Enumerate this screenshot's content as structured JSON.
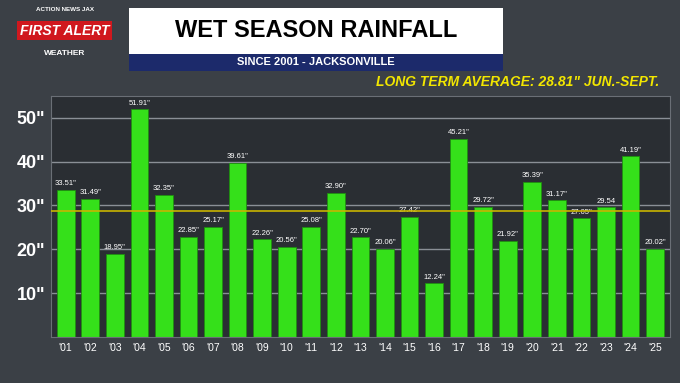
{
  "chart_data": {
    "type": "bar",
    "title": "WET SEASON RAINFALL",
    "subtitle": "SINCE 2001 - JACKSONVILLE",
    "annotation": "LONG TERM AVERAGE: 28.81\" JUN.-SEPT.",
    "logo": [
      "ACTION NEWS JAX",
      "FIRST ALERT",
      "WEATHER"
    ],
    "average": 28.81,
    "categories": [
      "'01",
      "'02",
      "'03",
      "'04",
      "'05",
      "'06",
      "'07",
      "'08",
      "'09",
      "'10",
      "'11",
      "'12",
      "'13",
      "'14",
      "'15",
      "'16",
      "'17",
      "'18",
      "'19",
      "'20",
      "'21",
      "'22",
      "'23",
      "'24",
      "'25"
    ],
    "values": [
      33.51,
      31.49,
      18.95,
      51.91,
      32.35,
      22.85,
      25.17,
      39.61,
      22.26,
      20.56,
      25.08,
      32.9,
      22.7,
      20.06,
      27.42,
      12.24,
      45.21,
      29.72,
      21.92,
      35.39,
      31.17,
      27.05,
      29.54,
      41.19,
      20.02
    ],
    "value_labels": [
      "33.51\"",
      "31.49\"",
      "18.95\"",
      "51.91\"",
      "32.35\"",
      "22.85\"",
      "25.17\"",
      "39.61\"",
      "22.26\"",
      "20.56\"",
      "25.08\"",
      "32.90\"",
      "22.70\"",
      "20.06\"",
      "27.42\"",
      "12.24\"",
      "45.21\"",
      "29.72\"",
      "21.92\"",
      "35.39\"",
      "31.17\"",
      "27.05\"",
      "29.54",
      "41.19\"",
      "20.02\""
    ],
    "data_labels": true,
    "color": "#35e01a",
    "ylim": [
      0,
      55
    ],
    "yticks": [
      {
        "value": 10,
        "label": "10\""
      },
      {
        "value": 20,
        "label": "20\""
      },
      {
        "value": 30,
        "label": "30\""
      },
      {
        "value": 40,
        "label": "40\""
      },
      {
        "value": 50,
        "label": "50\""
      }
    ],
    "grid": true
  }
}
